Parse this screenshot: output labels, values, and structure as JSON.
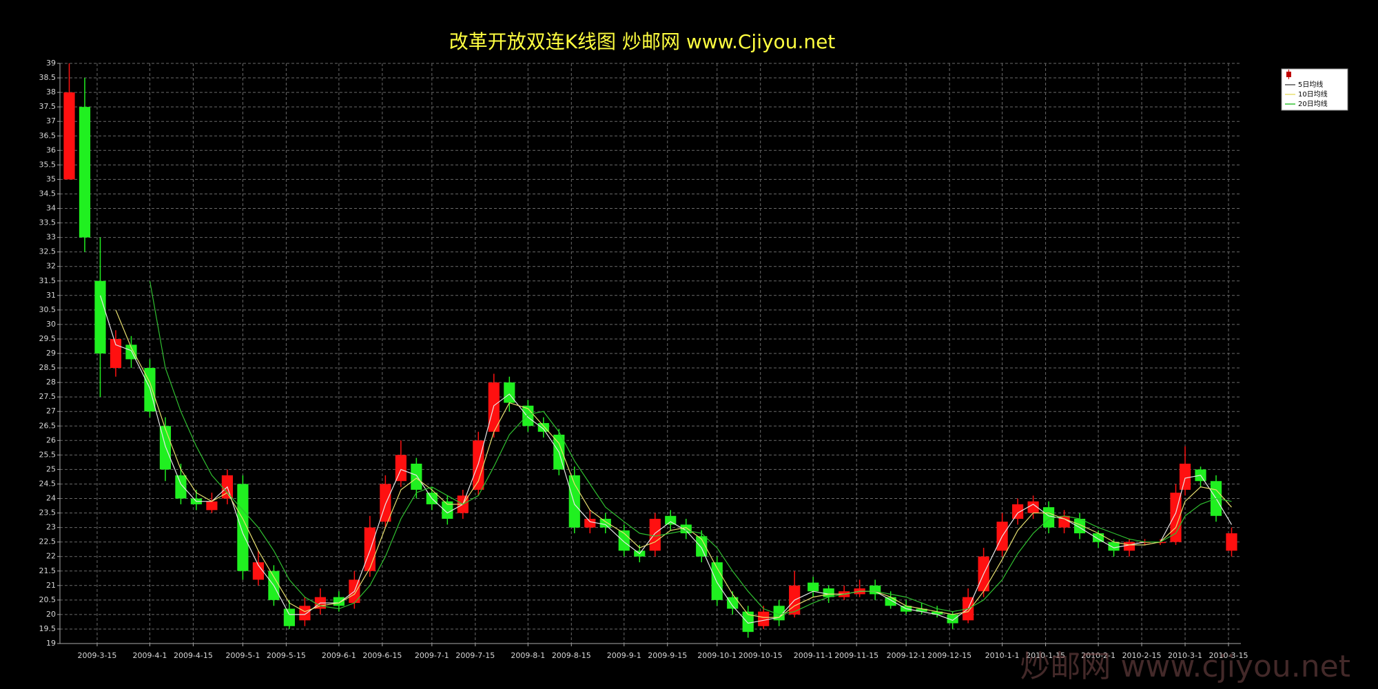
{
  "chart_data": {
    "type": "candlestick",
    "title": "改革开放双连K线图  炒邮网 www.Cjiyou.net",
    "watermark": "炒邮网 www.cjiyou.net",
    "x": [
      "2009-3-6",
      "2009-3-11",
      "2009-3-16",
      "2009-3-21",
      "2009-3-26",
      "2009-4-1",
      "2009-4-6",
      "2009-4-11",
      "2009-4-16",
      "2009-4-21",
      "2009-4-26",
      "2009-5-1",
      "2009-5-6",
      "2009-5-11",
      "2009-5-16",
      "2009-5-21",
      "2009-5-26",
      "2009-6-1",
      "2009-6-6",
      "2009-6-11",
      "2009-6-16",
      "2009-6-21",
      "2009-6-26",
      "2009-7-1",
      "2009-7-6",
      "2009-7-11",
      "2009-7-16",
      "2009-7-21",
      "2009-7-26",
      "2009-8-1",
      "2009-8-6",
      "2009-8-11",
      "2009-8-16",
      "2009-8-21",
      "2009-8-26",
      "2009-9-1",
      "2009-9-6",
      "2009-9-11",
      "2009-9-16",
      "2009-9-21",
      "2009-9-26",
      "2009-10-1",
      "2009-10-6",
      "2009-10-11",
      "2009-10-16",
      "2009-10-21",
      "2009-10-26",
      "2009-11-1",
      "2009-11-6",
      "2009-11-11",
      "2009-11-16",
      "2009-11-21",
      "2009-11-26",
      "2009-12-1",
      "2009-12-6",
      "2009-12-11",
      "2009-12-16",
      "2009-12-21",
      "2009-12-26",
      "2010-1-1",
      "2010-1-6",
      "2010-1-11",
      "2010-1-16",
      "2010-1-21",
      "2010-1-26",
      "2010-2-1",
      "2010-2-6",
      "2010-2-11",
      "2010-2-16",
      "2010-2-21",
      "2010-2-26",
      "2010-3-1",
      "2010-3-6",
      "2010-3-11",
      "2010-3-16"
    ],
    "open": [
      35,
      37.5,
      31.5,
      28.5,
      29.3,
      28.5,
      26.5,
      24.8,
      24,
      23.6,
      24,
      24.5,
      21.2,
      21.5,
      20.2,
      19.8,
      20.2,
      20.6,
      20.4,
      21.5,
      23.2,
      24.6,
      25.2,
      24.2,
      23.9,
      23.5,
      24.3,
      26.3,
      28,
      27.2,
      26.6,
      26.2,
      24.8,
      23,
      23.3,
      22.9,
      22.2,
      22.2,
      23.4,
      23.1,
      22.7,
      21.8,
      20.6,
      20.1,
      19.6,
      20.3,
      20,
      21.1,
      20.9,
      20.6,
      20.7,
      21,
      20.6,
      20.3,
      20.2,
      20.1,
      20,
      19.8,
      20.8,
      22.2,
      23.3,
      23.5,
      23.7,
      23,
      23.3,
      22.8,
      22.5,
      22.2,
      22.5,
      22.5,
      22.5,
      24.3,
      25,
      24.6,
      22.2
    ],
    "high": [
      39,
      38.5,
      33,
      29.8,
      29.6,
      28.8,
      26.8,
      25.2,
      24.3,
      24.2,
      25,
      24.8,
      22.2,
      21.7,
      20.5,
      20.6,
      20.9,
      20.8,
      21.5,
      23.4,
      24.8,
      26,
      25.4,
      24.4,
      24.1,
      24.3,
      26.3,
      28.3,
      28.2,
      27.4,
      26.8,
      26.4,
      25.1,
      23.6,
      23.5,
      23.1,
      22.4,
      23.5,
      23.6,
      23.3,
      22.9,
      22,
      20.8,
      20.3,
      20.3,
      20.5,
      21.5,
      21.3,
      21,
      21,
      21.2,
      21.2,
      20.8,
      20.5,
      20.4,
      20.3,
      20.1,
      20.9,
      22.3,
      23.5,
      24,
      24.1,
      23.9,
      23.6,
      23.5,
      22.9,
      22.6,
      22.6,
      22.6,
      22.6,
      24.5,
      25.8,
      25.1,
      24.8,
      23
    ],
    "low": [
      35,
      32.5,
      27.5,
      28.2,
      28.5,
      26.8,
      24.6,
      23.8,
      23.6,
      23.5,
      23.8,
      21.2,
      21,
      20.3,
      19.5,
      19.6,
      20,
      20.1,
      20.2,
      21.3,
      23,
      24.4,
      24,
      23.6,
      23.1,
      23.3,
      24.1,
      26.1,
      27,
      26.3,
      26.1,
      24.8,
      22.8,
      22.8,
      22.8,
      22,
      21.8,
      22,
      22.9,
      22.6,
      21.8,
      20.3,
      20,
      19.2,
      19.5,
      19.6,
      19.9,
      20.6,
      20.4,
      20.5,
      20.6,
      20.5,
      20.2,
      20,
      20,
      19.9,
      19.5,
      19.7,
      20.6,
      22,
      23.1,
      23.3,
      22.8,
      22.8,
      22.6,
      22.3,
      22,
      22,
      22.4,
      22.4,
      22.4,
      24.1,
      24.4,
      23.2,
      22
    ],
    "close": [
      38,
      33,
      29,
      29.5,
      28.8,
      27,
      25,
      24,
      23.8,
      23.9,
      24.8,
      21.5,
      21.8,
      20.5,
      19.6,
      20.3,
      20.6,
      20.3,
      21.2,
      23,
      24.5,
      25.5,
      24.3,
      23.8,
      23.3,
      24.1,
      26,
      28,
      27.3,
      26.5,
      26.3,
      25,
      23,
      23.3,
      23,
      22.2,
      22,
      23.3,
      23.1,
      22.8,
      22,
      20.5,
      20.2,
      19.4,
      20.1,
      19.8,
      21,
      20.8,
      20.6,
      20.8,
      20.9,
      20.7,
      20.3,
      20.1,
      20.1,
      20,
      19.7,
      20.6,
      22,
      23.2,
      23.8,
      23.9,
      23,
      23.4,
      22.8,
      22.5,
      22.2,
      22.5,
      22.5,
      22.5,
      24.2,
      25.2,
      24.6,
      23.4,
      22.8
    ],
    "up_color": "#ff1010",
    "down_color": "#20f020",
    "series": [
      {
        "name": "5日均线",
        "color": "#e8e8e8",
        "values": [
          null,
          null,
          31,
          29.3,
          29.1,
          27.8,
          25.8,
          24.5,
          23.9,
          23.9,
          24.4,
          22.8,
          21.7,
          21,
          20,
          20,
          20.4,
          20.4,
          20.8,
          22.2,
          23.8,
          25,
          24.8,
          24,
          23.5,
          23.8,
          25.2,
          27.2,
          27.6,
          26.8,
          26.4,
          25.6,
          23.8,
          23.2,
          23.1,
          22.5,
          22.1,
          22.8,
          23.2,
          22.9,
          22.3,
          21.1,
          20.3,
          19.7,
          19.8,
          19.9,
          20.5,
          20.8,
          20.7,
          20.7,
          20.8,
          20.8,
          20.5,
          20.2,
          20.1,
          20,
          19.8,
          20.2,
          21.4,
          22.7,
          23.5,
          23.8,
          23.4,
          23.3,
          23,
          22.6,
          22.3,
          22.4,
          22.5,
          22.5,
          23.5,
          24.7,
          24.8,
          24,
          23.1
        ]
      },
      {
        "name": "10日均线",
        "color": "#e8e070",
        "values": [
          null,
          null,
          null,
          30.5,
          29.2,
          28,
          26.4,
          25,
          24.2,
          23.9,
          24.2,
          23.3,
          22.2,
          21.3,
          20.4,
          20.1,
          20.3,
          20.4,
          20.7,
          21.6,
          23,
          24.3,
          24.7,
          24.3,
          23.8,
          23.8,
          24.6,
          26.3,
          27.3,
          27.1,
          26.5,
          25.9,
          24.5,
          23.6,
          23.2,
          22.8,
          22.3,
          22.5,
          22.9,
          23,
          22.6,
          21.6,
          20.7,
          20,
          19.9,
          19.9,
          20.3,
          20.6,
          20.7,
          20.7,
          20.8,
          20.8,
          20.6,
          20.3,
          20.2,
          20.1,
          20,
          20.1,
          20.8,
          21.9,
          22.9,
          23.5,
          23.5,
          23.3,
          23.1,
          22.8,
          22.5,
          22.4,
          22.4,
          22.5,
          23,
          23.9,
          24.4,
          24.3,
          23.7
        ]
      },
      {
        "name": "20日均线",
        "color": "#30c030",
        "values": [
          null,
          null,
          null,
          null,
          null,
          31.5,
          28.5,
          27,
          25.8,
          24.8,
          24.2,
          23.6,
          23,
          22.2,
          21.2,
          20.6,
          20.3,
          20.2,
          20.4,
          21,
          22,
          23.3,
          24.2,
          24.4,
          24.1,
          23.8,
          24.1,
          25.1,
          26.2,
          26.9,
          27,
          26.3,
          25.3,
          24.5,
          23.7,
          23.2,
          22.8,
          22.7,
          22.8,
          22.9,
          22.8,
          22.3,
          21.5,
          20.8,
          20.2,
          20,
          20.1,
          20.4,
          20.6,
          20.7,
          20.8,
          20.8,
          20.7,
          20.6,
          20.4,
          20.2,
          20.1,
          20.2,
          20.5,
          21.2,
          22.1,
          22.8,
          23.3,
          23.4,
          23.3,
          23,
          22.8,
          22.6,
          22.5,
          22.5,
          22.8,
          23.4,
          23.8,
          24,
          23.9
        ]
      }
    ],
    "xlim": [
      "2009-3-3",
      "2010-3-19"
    ],
    "xticks": [
      "2009-3-15",
      "2009-4-1",
      "2009-4-15",
      "2009-5-1",
      "2009-5-15",
      "2009-6-1",
      "2009-6-15",
      "2009-7-1",
      "2009-7-15",
      "2009-8-1",
      "2009-8-15",
      "2009-9-1",
      "2009-9-15",
      "2009-10-1",
      "2009-10-15",
      "2009-11-1",
      "2009-11-15",
      "2009-12-1",
      "2009-12-15",
      "2010-1-1",
      "2010-1-15",
      "2010-2-1",
      "2010-2-15",
      "2010-3-1",
      "2010-3-15"
    ],
    "ylim": [
      19,
      39
    ],
    "yticks": [
      19,
      19.5,
      20,
      20.5,
      21,
      21.5,
      22,
      22.5,
      23,
      23.5,
      24,
      24.5,
      25,
      25.5,
      26,
      26.5,
      27,
      27.5,
      28,
      28.5,
      29,
      29.5,
      30,
      30.5,
      31,
      31.5,
      32,
      32.5,
      33,
      33.5,
      34,
      34.5,
      35,
      35.5,
      36,
      36.5,
      37,
      37.5,
      38,
      38.5,
      39
    ],
    "grid": true
  }
}
